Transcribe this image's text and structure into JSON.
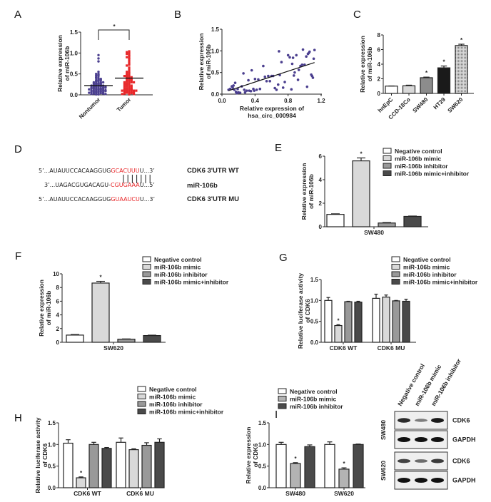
{
  "panels": {
    "A": "A",
    "B": "B",
    "C": "C",
    "D": "D",
    "E": "E",
    "F": "F",
    "G": "G",
    "H": "H",
    "I": "I"
  },
  "colors": {
    "purple": "#4b3f8f",
    "red": "#e8282a",
    "white_bar": "#ffffff",
    "light_bar": "#d9d9d9",
    "mid_bar": "#999999",
    "dark_bar": "#4a4a4a",
    "black_bar": "#1a1a1a"
  },
  "chart_data": [
    {
      "id": "A",
      "type": "scatter",
      "title": "",
      "xlabel": "",
      "ylabel": "Relative expression of miR-106b",
      "ylim": [
        0,
        1.5
      ],
      "yticks": [
        "0.0",
        "0.5",
        "1.0",
        "1.5"
      ],
      "categories": [
        "Nontumor",
        "Tumor"
      ],
      "significance": "*",
      "series": [
        {
          "name": "Nontumor",
          "color": "#4b3f8f",
          "marker": "circle",
          "mean": 0.22,
          "values": [
            0.95,
            0.87,
            0.8,
            0.55,
            0.5,
            0.5,
            0.48,
            0.46,
            0.45,
            0.42,
            0.4,
            0.4,
            0.38,
            0.36,
            0.35,
            0.35,
            0.33,
            0.32,
            0.3,
            0.3,
            0.3,
            0.28,
            0.28,
            0.27,
            0.26,
            0.25,
            0.25,
            0.24,
            0.23,
            0.22,
            0.22,
            0.21,
            0.2,
            0.2,
            0.19,
            0.18,
            0.18,
            0.17,
            0.16,
            0.15,
            0.15,
            0.14,
            0.13,
            0.12,
            0.12,
            0.11,
            0.1,
            0.1,
            0.09,
            0.08,
            0.08,
            0.07,
            0.06,
            0.05,
            0.05,
            0.04,
            0.03,
            0.03,
            0.02,
            0.02,
            0.01,
            0.01,
            0.05,
            0.07,
            0.09,
            0.11,
            0.13,
            0.15,
            0.17,
            0.19
          ]
        },
        {
          "name": "Tumor",
          "color": "#e8282a",
          "marker": "square",
          "mean": 0.4,
          "values": [
            1.04,
            1.02,
            1.0,
            0.98,
            0.96,
            0.93,
            0.9,
            0.88,
            0.85,
            0.8,
            0.75,
            0.72,
            0.7,
            0.65,
            0.6,
            0.55,
            0.52,
            0.5,
            0.48,
            0.46,
            0.45,
            0.44,
            0.42,
            0.4,
            0.4,
            0.38,
            0.36,
            0.35,
            0.33,
            0.32,
            0.3,
            0.3,
            0.28,
            0.27,
            0.25,
            0.24,
            0.22,
            0.2,
            0.2,
            0.18,
            0.16,
            0.15,
            0.14,
            0.13,
            0.12,
            0.12,
            0.11,
            0.1,
            0.1,
            0.09,
            0.08,
            0.08,
            0.07,
            0.06,
            0.05,
            0.05,
            0.04,
            0.03,
            0.02,
            0.02,
            0.01,
            0.15,
            0.25,
            0.35,
            0.45,
            0.55,
            0.1,
            0.2,
            0.3
          ]
        }
      ]
    },
    {
      "id": "B",
      "type": "scatter",
      "title": "",
      "xlabel": "Relative expression of hsa_circ_000984",
      "ylabel": "Relative expression of miR-106b",
      "xlim": [
        0,
        1.2
      ],
      "ylim": [
        0,
        1.5
      ],
      "xticks": [
        "0.0",
        "0.4",
        "0.8",
        "1.2"
      ],
      "yticks": [
        "0.0",
        "0.5",
        "1.0",
        "1.5"
      ],
      "color": "#4b3f8f",
      "regression": {
        "x0": 0.08,
        "y0": 0.08,
        "x1": 1.12,
        "y1": 0.73
      },
      "points": [
        [
          0.08,
          0.1
        ],
        [
          0.1,
          0.12
        ],
        [
          0.12,
          0.18
        ],
        [
          0.13,
          0.15
        ],
        [
          0.14,
          0.2
        ],
        [
          0.15,
          0.1
        ],
        [
          0.16,
          0.26
        ],
        [
          0.17,
          0.05
        ],
        [
          0.18,
          0.02
        ],
        [
          0.19,
          0.12
        ],
        [
          0.2,
          0.04
        ],
        [
          0.22,
          0.03
        ],
        [
          0.24,
          0.18
        ],
        [
          0.26,
          0.48
        ],
        [
          0.27,
          0.1
        ],
        [
          0.28,
          0.04
        ],
        [
          0.3,
          0.08
        ],
        [
          0.32,
          0.32
        ],
        [
          0.33,
          0.08
        ],
        [
          0.35,
          0.07
        ],
        [
          0.36,
          0.55
        ],
        [
          0.38,
          0.12
        ],
        [
          0.39,
          0.08
        ],
        [
          0.4,
          0.35
        ],
        [
          0.42,
          0.1
        ],
        [
          0.44,
          0.34
        ],
        [
          0.46,
          0.12
        ],
        [
          0.5,
          0.65
        ],
        [
          0.52,
          0.4
        ],
        [
          0.54,
          0.3
        ],
        [
          0.56,
          0.42
        ],
        [
          0.58,
          0.3
        ],
        [
          0.6,
          0.42
        ],
        [
          0.62,
          0.42
        ],
        [
          0.64,
          0.14
        ],
        [
          0.66,
          0.1
        ],
        [
          0.68,
          0.22
        ],
        [
          0.69,
          0.99
        ],
        [
          0.7,
          0.44
        ],
        [
          0.72,
          0.74
        ],
        [
          0.74,
          0.15
        ],
        [
          0.76,
          0.28
        ],
        [
          0.8,
          0.9
        ],
        [
          0.82,
          0.85
        ],
        [
          0.84,
          0.11
        ],
        [
          0.85,
          0.7
        ],
        [
          0.86,
          0.84
        ],
        [
          0.87,
          0.43
        ],
        [
          0.88,
          0.5
        ],
        [
          0.9,
          0.9
        ],
        [
          0.92,
          0.33
        ],
        [
          0.93,
          0.56
        ],
        [
          0.95,
          0.65
        ],
        [
          0.97,
          0.68
        ],
        [
          0.98,
          1.03
        ],
        [
          1.0,
          0.68
        ],
        [
          1.02,
          0.87
        ],
        [
          1.03,
          0.17
        ],
        [
          1.04,
          0.93
        ],
        [
          1.05,
          0.95
        ],
        [
          1.06,
          0.98
        ],
        [
          1.08,
          0.45
        ],
        [
          1.09,
          0.42
        ],
        [
          1.1,
          0.38
        ],
        [
          1.11,
          0.82
        ],
        [
          1.12,
          1.02
        ]
      ]
    },
    {
      "id": "C",
      "type": "bar",
      "title": "",
      "xlabel": "",
      "ylabel": "Relative expression of miR-106b",
      "ylim": [
        0,
        8
      ],
      "yticks": [
        "0",
        "2",
        "4",
        "6",
        "8"
      ],
      "categories": [
        "hnEpC",
        "CCD-18Co",
        "SW480",
        "HT29",
        "SW620"
      ],
      "values": [
        1.0,
        1.05,
        2.15,
        3.5,
        6.55
      ],
      "errors": [
        0.02,
        0.08,
        0.08,
        0.25,
        0.18
      ],
      "significance": [
        "",
        "",
        "*",
        "*",
        "*"
      ],
      "fills": [
        "#ffffff",
        "#d9d9d9",
        "#8c8c8c",
        "#1a1a1a",
        "#bdbdbd"
      ]
    },
    {
      "id": "E",
      "type": "bar",
      "title": "",
      "xlabel": "SW480",
      "ylabel": "Relative expression of miR-106b",
      "ylim": [
        0,
        6
      ],
      "yticks": [
        "0",
        "2",
        "4",
        "6"
      ],
      "categories": [
        "SW480"
      ],
      "legend": "top-right",
      "series": [
        {
          "name": "Negative control",
          "values": [
            1.05
          ],
          "errors": [
            0.05
          ],
          "sig": ""
        },
        {
          "name": "miR-106b mimic",
          "values": [
            5.6
          ],
          "errors": [
            0.25
          ],
          "sig": "*"
        },
        {
          "name": "miR-106b inhibitor",
          "values": [
            0.32
          ],
          "errors": [
            0.04
          ],
          "sig": ""
        },
        {
          "name": "miR-106b mimic+inhibitor",
          "values": [
            0.88
          ],
          "errors": [
            0.03
          ],
          "sig": ""
        }
      ]
    },
    {
      "id": "F",
      "type": "bar",
      "title": "",
      "xlabel": "SW620",
      "ylabel": "Relative expression of miR-106b",
      "ylim": [
        0,
        10
      ],
      "yticks": [
        "0",
        "2",
        "4",
        "6",
        "8",
        "10"
      ],
      "categories": [
        "SW620"
      ],
      "legend": "top-right",
      "series": [
        {
          "name": "Negative control",
          "values": [
            1.05
          ],
          "errors": [
            0.08
          ],
          "sig": ""
        },
        {
          "name": "miR-106b mimic",
          "values": [
            8.65
          ],
          "errors": [
            0.25
          ],
          "sig": "*"
        },
        {
          "name": "miR-106b inhibitor",
          "values": [
            0.45
          ],
          "errors": [
            0.04
          ],
          "sig": ""
        },
        {
          "name": "miR-106b mimic+inhibitor",
          "values": [
            0.98
          ],
          "errors": [
            0.06
          ],
          "sig": ""
        }
      ]
    },
    {
      "id": "G",
      "type": "bar",
      "title": "",
      "xlabel": "",
      "ylabel": "Relative luciferase activity of CDK6",
      "ylim": [
        0,
        1.5
      ],
      "yticks": [
        "0.0",
        "0.5",
        "1.0",
        "1.5"
      ],
      "categories": [
        "CDK6 WT",
        "CDK6 MU"
      ],
      "legend": "top-right",
      "series": [
        {
          "name": "Negative control",
          "values": [
            1.0,
            1.05
          ],
          "errors": [
            0.07,
            0.1
          ],
          "sig": [
            "",
            ""
          ]
        },
        {
          "name": "miR-106b mimic",
          "values": [
            0.4,
            1.08
          ],
          "errors": [
            0.02,
            0.05
          ],
          "sig": [
            "*",
            ""
          ]
        },
        {
          "name": "miR-106b inhibitor",
          "values": [
            0.97,
            0.99
          ],
          "errors": [
            0.01,
            0.01
          ],
          "sig": [
            "",
            ""
          ]
        },
        {
          "name": "miR-106b mimic+inhibitor",
          "values": [
            0.96,
            0.98
          ],
          "errors": [
            0.02,
            0.05
          ],
          "sig": [
            "",
            ""
          ]
        }
      ]
    },
    {
      "id": "H",
      "type": "bar",
      "title": "",
      "xlabel": "",
      "ylabel": "Relative luciferase activity of CDK6",
      "ylim": [
        0,
        1.5
      ],
      "yticks": [
        "0.0",
        "0.5",
        "1.0",
        "1.5"
      ],
      "categories": [
        "CDK6 WT",
        "CDK6 MU"
      ],
      "legend": "top-right",
      "series": [
        {
          "name": "Negative control",
          "values": [
            1.03,
            1.05
          ],
          "errors": [
            0.08,
            0.1
          ],
          "sig": [
            "",
            ""
          ]
        },
        {
          "name": "miR-106b mimic",
          "values": [
            0.23,
            0.88
          ],
          "errors": [
            0.02,
            0.02
          ],
          "sig": [
            "*",
            ""
          ]
        },
        {
          "name": "miR-106b inhibitor",
          "values": [
            1.0,
            0.98
          ],
          "errors": [
            0.05,
            0.06
          ],
          "sig": [
            "",
            ""
          ]
        },
        {
          "name": "miR-106b mimic+inhibitor",
          "values": [
            0.91,
            1.05
          ],
          "errors": [
            0.02,
            0.08
          ],
          "sig": [
            "",
            ""
          ]
        }
      ]
    },
    {
      "id": "I",
      "type": "bar",
      "title": "",
      "xlabel": "",
      "ylabel": "Relative expression of CDK6",
      "ylim": [
        0,
        1.5
      ],
      "yticks": [
        "0.0",
        "0.5",
        "1.0",
        "1.5"
      ],
      "categories": [
        "SW480",
        "SW620"
      ],
      "legend": "top-right",
      "series": [
        {
          "name": "Negative control",
          "values": [
            1.0,
            1.0
          ],
          "errors": [
            0.05,
            0.06
          ],
          "sig": [
            "",
            ""
          ]
        },
        {
          "name": "miR-106b mimic",
          "values": [
            0.56,
            0.43
          ],
          "errors": [
            0.02,
            0.03
          ],
          "sig": [
            "*",
            "*"
          ]
        },
        {
          "name": "miR-106b inhibitor",
          "values": [
            0.95,
            1.0
          ],
          "errors": [
            0.04,
            0.01
          ],
          "sig": [
            "",
            ""
          ]
        }
      ]
    }
  ],
  "sequences": {
    "rows": [
      {
        "prefix": "5’...AUAUUCCACAAGGUG",
        "highlight": "GCACUUU",
        "suffix": "U...3’",
        "label": "CDK6 3'UTR WT"
      },
      {
        "prefix": "3’...UAGACGUGACAGU-",
        "highlight": "CGUGAAA",
        "suffix": "U...5’",
        "label": "miR-106b"
      },
      {
        "prefix": "5’...AUAUUCCACAAGGUG",
        "highlight": "GUAAUCU",
        "suffix": "U...3’",
        "label": "CDK6 3'UTR MU"
      }
    ],
    "pairing_lines": 7
  },
  "western_blot": {
    "lanes": [
      "Negative control",
      "miR-106b mimic",
      "miR-106b inhibitor"
    ],
    "groups": [
      {
        "cell_line": "SW480",
        "rows": [
          {
            "protein": "CDK6",
            "intensity": [
              0.85,
              0.35,
              0.95
            ]
          },
          {
            "protein": "GAPDH",
            "intensity": [
              1.0,
              1.0,
              1.0
            ]
          }
        ]
      },
      {
        "cell_line": "SW620",
        "rows": [
          {
            "protein": "CDK6",
            "intensity": [
              0.7,
              0.45,
              0.75
            ]
          },
          {
            "protein": "GAPDH",
            "intensity": [
              1.0,
              1.0,
              1.0
            ]
          }
        ]
      }
    ]
  }
}
